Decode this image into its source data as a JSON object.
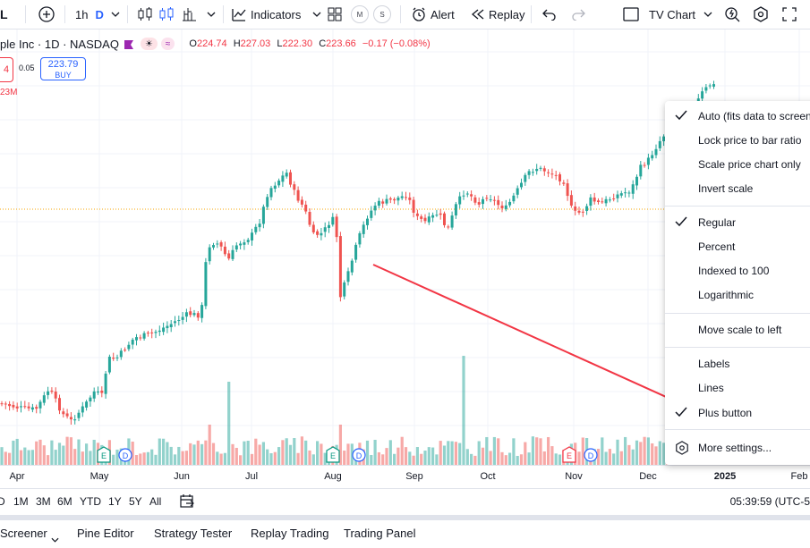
{
  "toolbar": {
    "symbol_tail": "L",
    "interval": "1h",
    "interval_suffix": "D",
    "indicators_label": "Indicators",
    "m_chip": "M",
    "s_chip": "S",
    "alert_label": "Alert",
    "replay_label": "Replay",
    "layout_label": "TV Chart"
  },
  "legend": {
    "symbol": "ple Inc · 1D · NASDAQ",
    "pill_a": "☀",
    "pill_b": "≈",
    "open_label": "O",
    "open": "224.74",
    "high_label": "H",
    "high": "227.03",
    "low_label": "L",
    "low": "222.30",
    "close_label": "C",
    "close": "223.66",
    "change": "−0.17 (−0.08%)"
  },
  "trade": {
    "sell_fragment": "4",
    "spread": "0.05",
    "buy_price": "223.79",
    "buy_label": "BUY",
    "volume": "23M"
  },
  "x_axis": {
    "labels": [
      "Apr",
      "May",
      "Jun",
      "Jul",
      "Aug",
      "Sep",
      "Oct",
      "Nov",
      "Dec",
      "2025",
      "Feb"
    ]
  },
  "chart_events": {
    "earnings": "E",
    "dividend": "D"
  },
  "ranges": {
    "items": [
      "D",
      "1M",
      "3M",
      "6M",
      "YTD",
      "1Y",
      "5Y",
      "All"
    ],
    "clock": "05:39:59 (UTC-5"
  },
  "bottom_tabs": [
    "Screener",
    "Pine Editor",
    "Strategy Tester",
    "Replay Trading",
    "Trading Panel"
  ],
  "menu": {
    "items": [
      {
        "label": "Auto (fits data to screen)",
        "checked": true
      },
      {
        "label": "Lock price to bar ratio",
        "checked": false
      },
      {
        "label": "Scale price chart only",
        "checked": false
      },
      {
        "label": "Invert scale",
        "checked": false
      },
      {
        "label": "Regular",
        "checked": true
      },
      {
        "label": "Percent",
        "checked": false
      },
      {
        "label": "Indexed to 100",
        "checked": false
      },
      {
        "label": "Logarithmic",
        "checked": false
      },
      {
        "label": "Move scale to left",
        "checked": false
      },
      {
        "label": "Labels",
        "checked": false
      },
      {
        "label": "Lines",
        "checked": false
      },
      {
        "label": "Plus button",
        "checked": true
      },
      {
        "label": "More settings...",
        "checked": false
      }
    ]
  },
  "colors": {
    "up": "#26a69a",
    "down": "#ef5350",
    "accent": "#2962ff",
    "annotation": "#f23645"
  }
}
